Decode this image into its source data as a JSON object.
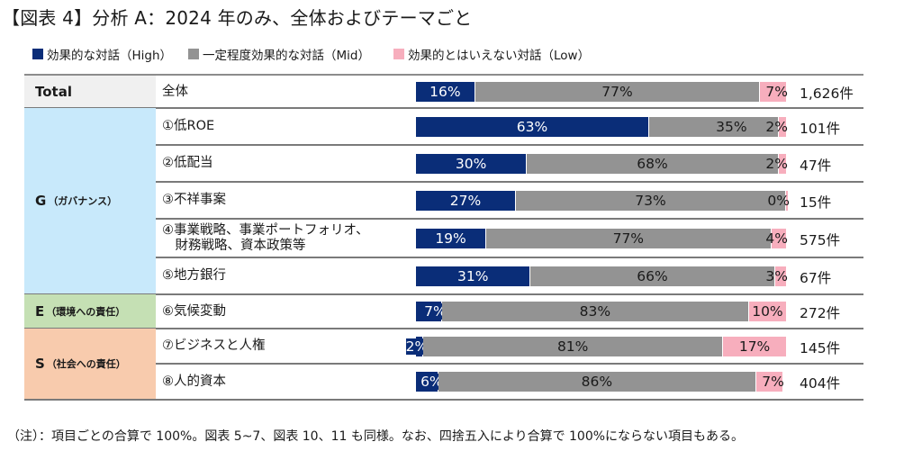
{
  "title": "【図表 4】分析 A：2024 年のみ、全体およびテーマごと",
  "footnote": "（注）：項目ごとの合算で 100%。図表 5~7、図表 10、11 も同様。なお、四捨五入により合算で 100%にならない項目もある。",
  "colors": {
    "high": "#0a2d78",
    "mid": "#939393",
    "low": "#f7aebd",
    "cat_total": "#f0f0f0",
    "cat_g": "#c8e9fb",
    "cat_e": "#c5e0b4",
    "cat_s": "#f8cbad"
  },
  "chart_data": {
    "type": "bar",
    "orientation": "horizontal",
    "stacked": true,
    "percent": true,
    "title": "【図表 4】分析 A：2024 年のみ、全体およびテーマごと",
    "legend": {
      "placement": "top-left",
      "entries": [
        "効果的な対話（High）",
        "一定程度効果的な対話（Mid）",
        "効果的とはいえない対話（Low）"
      ]
    },
    "xlim": [
      0,
      100
    ],
    "groups": [
      {
        "label": "Total",
        "sub": "",
        "rows": [
          0
        ]
      },
      {
        "label": "G",
        "sub": "（ガバナンス）",
        "rows": [
          1,
          2,
          3,
          4,
          5
        ]
      },
      {
        "label": "E",
        "sub": "（環境への責任）",
        "rows": [
          6
        ]
      },
      {
        "label": "S",
        "sub": "（社会への責任）",
        "rows": [
          7,
          8
        ]
      }
    ],
    "categories": [
      "全体",
      "①低ROE",
      "②低配当",
      "③不祥事案",
      "④事業戦略、事業ポートフォリオ、財務戦略、資本政策等",
      "⑤地方銀行",
      "⑥気候変動",
      "⑦ビジネスと人権",
      "⑧人的資本"
    ],
    "category_lines": [
      [
        "全体"
      ],
      [
        "①低ROE"
      ],
      [
        "②低配当"
      ],
      [
        "③不祥事案"
      ],
      [
        "④事業戦略、事業ポートフォリオ、",
        "　財務戦略、資本政策等"
      ],
      [
        "⑤地方銀行"
      ],
      [
        "⑥気候変動"
      ],
      [
        "⑦ビジネスと人権"
      ],
      [
        "⑧人的資本"
      ]
    ],
    "series": [
      {
        "name": "効果的な対話（High）",
        "key": "high",
        "values": [
          16,
          63,
          30,
          27,
          19,
          31,
          7,
          2,
          6
        ]
      },
      {
        "name": "一定程度効果的な対話（Mid）",
        "key": "mid",
        "values": [
          77,
          35,
          68,
          73,
          77,
          66,
          83,
          81,
          86
        ]
      },
      {
        "name": "効果的とはいえない対話（Low）",
        "key": "low",
        "values": [
          7,
          2,
          2,
          0,
          4,
          3,
          10,
          17,
          7
        ]
      }
    ],
    "counts": [
      "1,626件",
      "101件",
      "47件",
      "15件",
      "575件",
      "67件",
      "272件",
      "145件",
      "404件"
    ],
    "value_suffix": "%"
  }
}
